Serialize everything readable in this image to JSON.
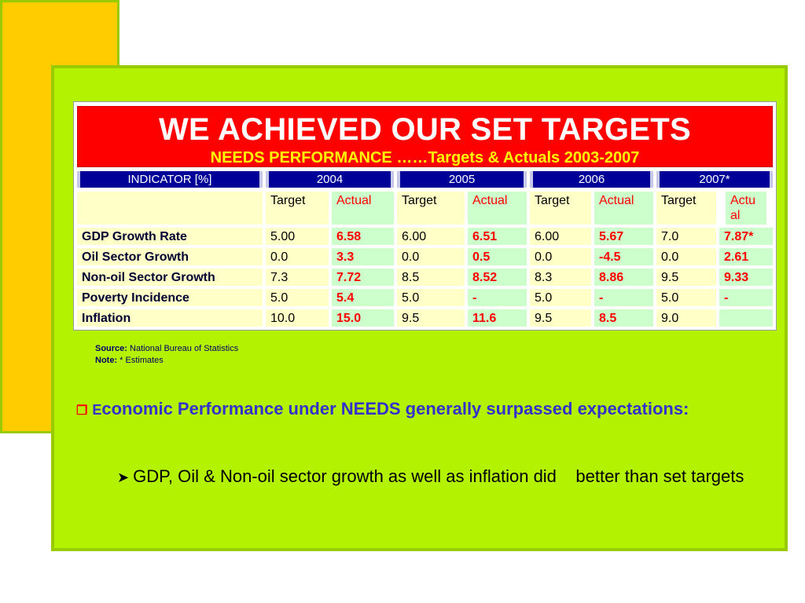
{
  "slide": {
    "title": "WE ACHIEVED OUR SET TARGETS",
    "subtitle": "NEEDS PERFORMANCE ……Targets & Actuals 2003-2007"
  },
  "table": {
    "indicator_header": "INDICATOR",
    "indicator_unit": "[%]",
    "years": [
      "2004",
      "2005",
      "2006",
      "2007*"
    ],
    "sub_headers": {
      "target": "Target",
      "actual": "Actual",
      "actual_wrapped": "Actu al"
    },
    "rows": [
      {
        "label": "GDP Growth Rate",
        "values": [
          "5.00",
          "6.58",
          "6.00",
          "6.51",
          "6.00",
          "5.67",
          "7.0",
          "7.87*"
        ]
      },
      {
        "label": "Oil Sector Growth",
        "values": [
          "0.0",
          "3.3",
          "0.0",
          "0.5",
          "0.0",
          "-4.5",
          "0.0",
          "2.61"
        ]
      },
      {
        "label": "Non-oil Sector Growth",
        "values": [
          "7.3",
          "7.72",
          "8.5",
          "8.52",
          "8.3",
          "8.86",
          "9.5",
          "9.33"
        ]
      },
      {
        "label": "Poverty Incidence",
        "values": [
          "5.0",
          "5.4",
          "5.0",
          "-",
          "5.0",
          "-",
          "5.0",
          "-"
        ]
      },
      {
        "label": "Inflation",
        "values": [
          "10.0",
          "15.0",
          "9.5",
          "11.6",
          "9.5",
          "8.5",
          "9.0",
          ""
        ]
      }
    ]
  },
  "notes": {
    "source_label": "Source:",
    "source_text": "National Bureau of Statistics",
    "note_label": "Note:",
    "note_text": "* Estimates"
  },
  "bullets": {
    "main_first_letter": "E",
    "main_rest": "conomic Performance under NEEDS generally surpassed expectations:",
    "sub": "GDP, Oil & Non-oil sector growth as well as inflation did    better than set targets"
  },
  "colors": {
    "panel": "#b3f200",
    "accent_yellow": "#ffcc00",
    "banner_red": "#ff0000",
    "header_navy": "#000099"
  },
  "icons": {
    "main_bullet": "checkbox-square-icon",
    "sub_bullet": "arrow-bullet-icon"
  }
}
